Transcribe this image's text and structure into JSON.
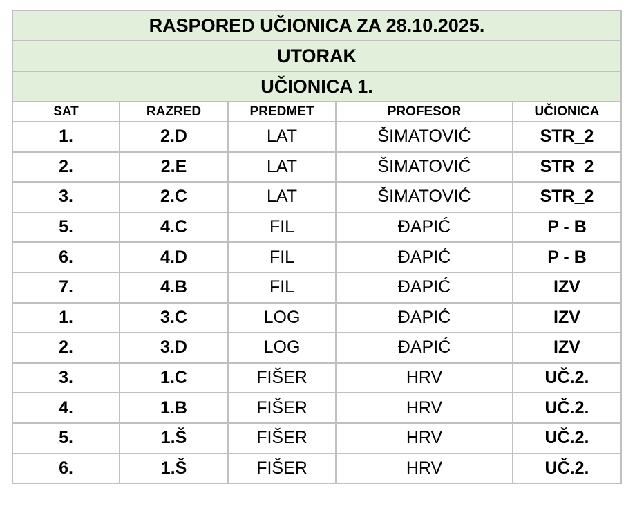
{
  "header": {
    "title": "RASPORED UČIONICA ZA 28.10.2025.",
    "day": "UTORAK",
    "room": "UČIONICA 1."
  },
  "table": {
    "columns": [
      "SAT",
      "RAZRED",
      "PREDMET",
      "PROFESOR",
      "UČIONICA"
    ],
    "rows": [
      [
        "1.",
        "2.D",
        "LAT",
        "ŠIMATOVIĆ",
        "STR_2"
      ],
      [
        "2.",
        "2.E",
        "LAT",
        "ŠIMATOVIĆ",
        "STR_2"
      ],
      [
        "3.",
        "2.C",
        "LAT",
        "ŠIMATOVIĆ",
        "STR_2"
      ],
      [
        "5.",
        "4.C",
        "FIL",
        "ĐAPIĆ",
        "P - B"
      ],
      [
        "6.",
        "4.D",
        "FIL",
        "ĐAPIĆ",
        "P - B"
      ],
      [
        "7.",
        "4.B",
        "FIL",
        "ĐAPIĆ",
        "IZV"
      ],
      [
        "1.",
        "3.C",
        "LOG",
        "ĐAPIĆ",
        "IZV"
      ],
      [
        "2.",
        "3.D",
        "LOG",
        "ĐAPIĆ",
        "IZV"
      ],
      [
        "3.",
        "1.C",
        "FIŠER",
        "HRV",
        "UČ.2."
      ],
      [
        "4.",
        "1.B",
        "FIŠER",
        "HRV",
        "UČ.2."
      ],
      [
        "5.",
        "1.Š",
        "FIŠER",
        "HRV",
        "UČ.2."
      ],
      [
        "6.",
        "1.Š",
        "FIŠER",
        "HRV",
        "UČ.2."
      ]
    ]
  }
}
